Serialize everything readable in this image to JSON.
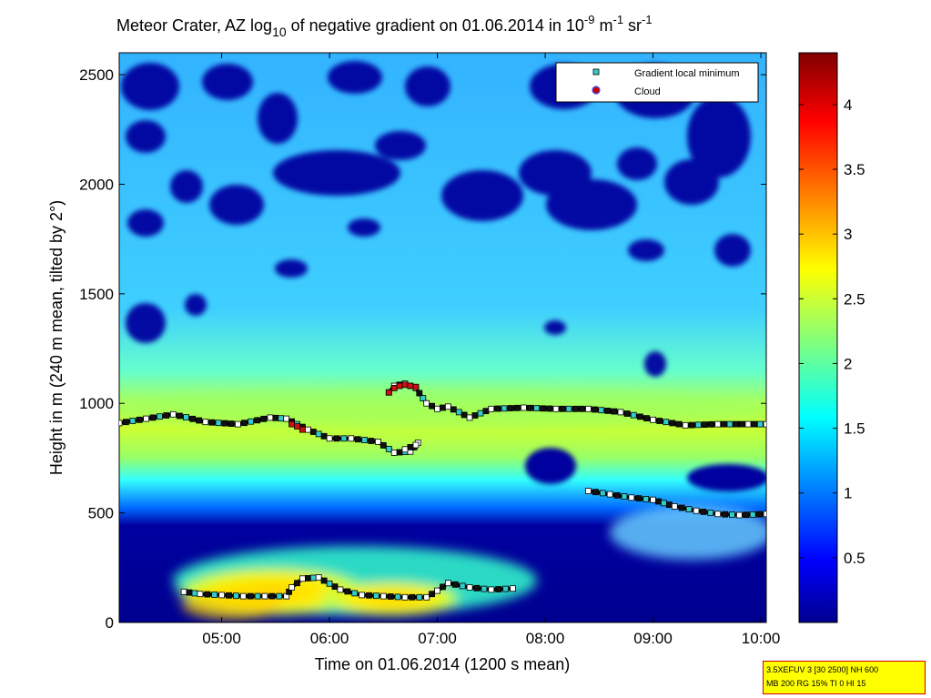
{
  "chart_data": {
    "type": "heatmap",
    "title": {
      "prefix": "Meteor Crater, AZ log",
      "prefix_sub": "10",
      "middle": " of negative gradient on 01.06.2014 in 10",
      "exp1": "-9",
      "unit_m": " m",
      "exp2": "-1",
      "unit_sr": " sr",
      "exp3": "-1"
    },
    "xlabel": "Time on 01.06.2014 (1200 s mean)",
    "ylabel": "Height in m (240 m mean, tilted by 2°)",
    "x_range_hours": [
      4.05,
      10.05
    ],
    "ylim": [
      0,
      2600
    ],
    "x_ticks": [
      {
        "label": "05:00",
        "hour": 5
      },
      {
        "label": "06:00",
        "hour": 6
      },
      {
        "label": "07:00",
        "hour": 7
      },
      {
        "label": "08:00",
        "hour": 8
      },
      {
        "label": "09:00",
        "hour": 9
      },
      {
        "label": "10:00",
        "hour": 10
      }
    ],
    "y_ticks": [
      0,
      500,
      1000,
      1500,
      2000,
      2500
    ],
    "colorbar": {
      "colormap": "jet",
      "range": [
        0,
        4.4
      ],
      "ticks": [
        "0.5",
        "1",
        "1.5",
        "2",
        "2.5",
        "3",
        "3.5",
        "4"
      ]
    },
    "legend": {
      "placement": "top-right",
      "entries": [
        {
          "label": "Gradient local minimum",
          "marker": "square",
          "color": "#33cccc"
        },
        {
          "label": "Cloud",
          "marker": "circle",
          "color": "#cc0000"
        }
      ]
    },
    "series": [
      {
        "name": "Gradient local minimum",
        "segment": "upper-layer-a",
        "x": [
          4.05,
          4.3,
          4.55,
          4.85,
          5.15,
          5.45,
          5.6,
          5.8,
          6.0,
          6.2,
          6.45,
          6.6,
          6.75,
          6.82,
          6.8,
          6.7
        ],
        "y": [
          910,
          930,
          950,
          915,
          905,
          935,
          930,
          880,
          840,
          840,
          825,
          775,
          780,
          820,
          810,
          790
        ]
      },
      {
        "name": "Gradient local minimum",
        "segment": "upper-layer-b",
        "x": [
          6.55,
          6.6,
          6.7,
          6.8,
          6.9,
          7.0,
          7.1,
          7.3,
          7.5,
          7.8,
          8.1,
          8.4,
          8.7,
          9.0,
          9.3,
          9.6,
          10.05
        ],
        "y": [
          1050,
          1080,
          1090,
          1070,
          1000,
          975,
          985,
          935,
          975,
          980,
          975,
          975,
          960,
          925,
          900,
          905,
          905
        ]
      },
      {
        "name": "Gradient local minimum",
        "segment": "mid-layer",
        "x": [
          8.4,
          8.6,
          8.8,
          9.0,
          9.2,
          9.4,
          9.6,
          9.8,
          10.05
        ],
        "y": [
          600,
          585,
          570,
          560,
          530,
          510,
          495,
          490,
          495
        ]
      },
      {
        "name": "Gradient local minimum",
        "segment": "lower-layer",
        "x": [
          4.65,
          4.8,
          5.0,
          5.2,
          5.4,
          5.6,
          5.65,
          5.75,
          5.9,
          6.1,
          6.3,
          6.5,
          6.7,
          6.9,
          7.0,
          7.1,
          7.3,
          7.5,
          7.7
        ],
        "y": [
          140,
          130,
          125,
          120,
          120,
          120,
          160,
          200,
          205,
          150,
          125,
          120,
          115,
          115,
          145,
          180,
          160,
          150,
          155
        ]
      },
      {
        "name": "Cloud",
        "x": [
          5.65,
          5.7,
          5.75,
          6.55,
          6.6,
          6.65,
          6.7,
          6.75,
          6.8
        ],
        "y": [
          905,
          895,
          880,
          1050,
          1070,
          1080,
          1085,
          1080,
          1075
        ]
      }
    ],
    "heatmap_features": [
      {
        "kind": "dense",
        "x": [
          4.45,
          6.0
        ],
        "y": [
          80,
          1750
        ],
        "value": 3.2
      },
      {
        "kind": "dense",
        "x": [
          5.8,
          7.3
        ],
        "y": [
          40,
          180
        ],
        "value": 3.0
      }
    ]
  },
  "info_box": {
    "line1": "3.5XEFUV 3 [30 2500] NH 600",
    "line2": "MB 200 RG 15% TI 0 HI 15"
  }
}
